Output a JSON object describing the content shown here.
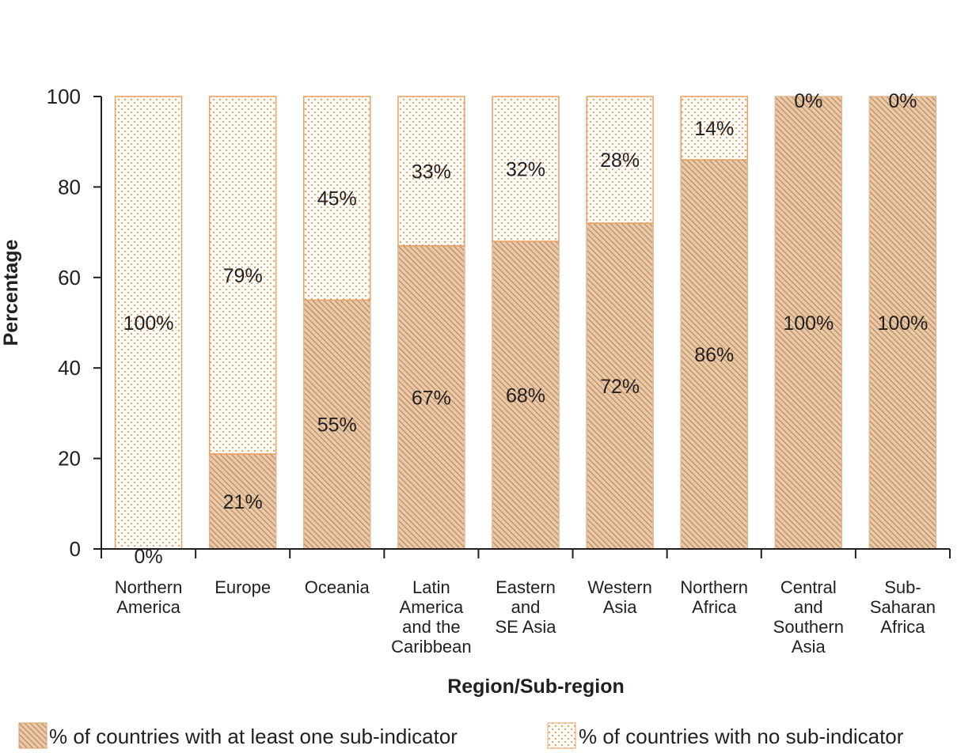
{
  "chart_data": {
    "type": "bar",
    "stacked": true,
    "categories": [
      [
        "Northern",
        "America"
      ],
      [
        "Europe"
      ],
      [
        "Oceania"
      ],
      [
        "Latin",
        "America",
        "and the",
        "Caribbean"
      ],
      [
        "Eastern",
        "and",
        "SE Asia"
      ],
      [
        "Western",
        "Asia"
      ],
      [
        "Northern",
        "Africa"
      ],
      [
        "Central",
        "and",
        "Southern",
        "Asia"
      ],
      [
        "Sub-",
        "Saharan",
        "Africa"
      ]
    ],
    "series": [
      {
        "name": "% of countries with at least one sub-indicator",
        "values": [
          0,
          21,
          55,
          67,
          68,
          72,
          86,
          100,
          100
        ],
        "labels": [
          "0%",
          "21%",
          "55%",
          "67%",
          "68%",
          "72%",
          "86%",
          "100%",
          "100%"
        ],
        "pattern": "hatched",
        "color": "#d8a16b"
      },
      {
        "name": "% of countries with no sub-indicator",
        "values": [
          100,
          79,
          45,
          33,
          32,
          28,
          14,
          0,
          0
        ],
        "labels": [
          "100%",
          "79%",
          "45%",
          "33%",
          "32%",
          "28%",
          "14%",
          "0%",
          "0%"
        ],
        "pattern": "dotted",
        "color": "#e8a060"
      }
    ],
    "xlabel": "Region/Sub-region",
    "ylabel": "Percentage",
    "ylim": [
      0,
      100
    ],
    "yticks": [
      0,
      20,
      40,
      60,
      80,
      100
    ],
    "grid": false,
    "legend_position": "bottom"
  }
}
